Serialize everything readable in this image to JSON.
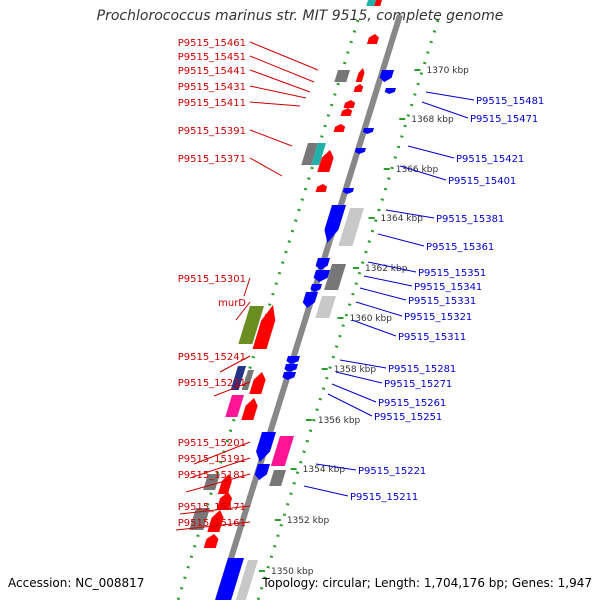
{
  "title": "Prochlorococcus marinus str. MIT 9515, complete genome",
  "footer": {
    "accession": "Accession: NC_008817",
    "summary": "Topology: circular; Length: 1,704,176 bp; Genes: 1,947"
  },
  "colors": {
    "forward_label": "#cc0000",
    "reverse_label": "#0000cc",
    "backbone": "#888888",
    "dots": "#2a9d2a",
    "gene_red": "#ff0000",
    "gene_blue": "#0000ff",
    "gene_gray": "#777777",
    "gene_lightgray": "#c8c8c8",
    "gene_olive": "#6b8e23",
    "gene_magenta": "#ff1493",
    "gene_cyan": "#20b2aa",
    "gene_navy": "#223388"
  },
  "scale_labels": [
    {
      "text": "1370 kbp",
      "kbp": 1370
    },
    {
      "text": "1368 kbp",
      "kbp": 1368
    },
    {
      "text": "1366 kbp",
      "kbp": 1366
    },
    {
      "text": "1364 kbp",
      "kbp": 1364
    },
    {
      "text": "1362 kbp",
      "kbp": 1362
    },
    {
      "text": "1360 kbp",
      "kbp": 1360
    },
    {
      "text": "1358 kbp",
      "kbp": 1358
    },
    {
      "text": "1356 kbp",
      "kbp": 1356
    },
    {
      "text": "1354 kbp",
      "kbp": 1354
    },
    {
      "text": "1352 kbp",
      "kbp": 1352
    },
    {
      "text": "1350 kbp",
      "kbp": 1350
    }
  ],
  "forward_labels": [
    "P9515_15461",
    "P9515_15451",
    "P9515_15441",
    "P9515_15431",
    "P9515_15411",
    "P9515_15391",
    "P9515_15371",
    "P9515_15301",
    "murD",
    "P9515_15241",
    "P9515_15231",
    "P9515_15201",
    "P9515_15191",
    "P9515_15181",
    "P9515_15171",
    "P9515_15161"
  ],
  "reverse_labels": [
    "P9515_15481",
    "P9515_15471",
    "P9515_15421",
    "P9515_15401",
    "P9515_15381",
    "P9515_15361",
    "P9515_15351",
    "P9515_15341",
    "P9515_15331",
    "P9515_15321",
    "P9515_15311",
    "P9515_15281",
    "P9515_15271",
    "P9515_15261",
    "P9515_15251",
    "P9515_15221",
    "P9515_15211"
  ]
}
